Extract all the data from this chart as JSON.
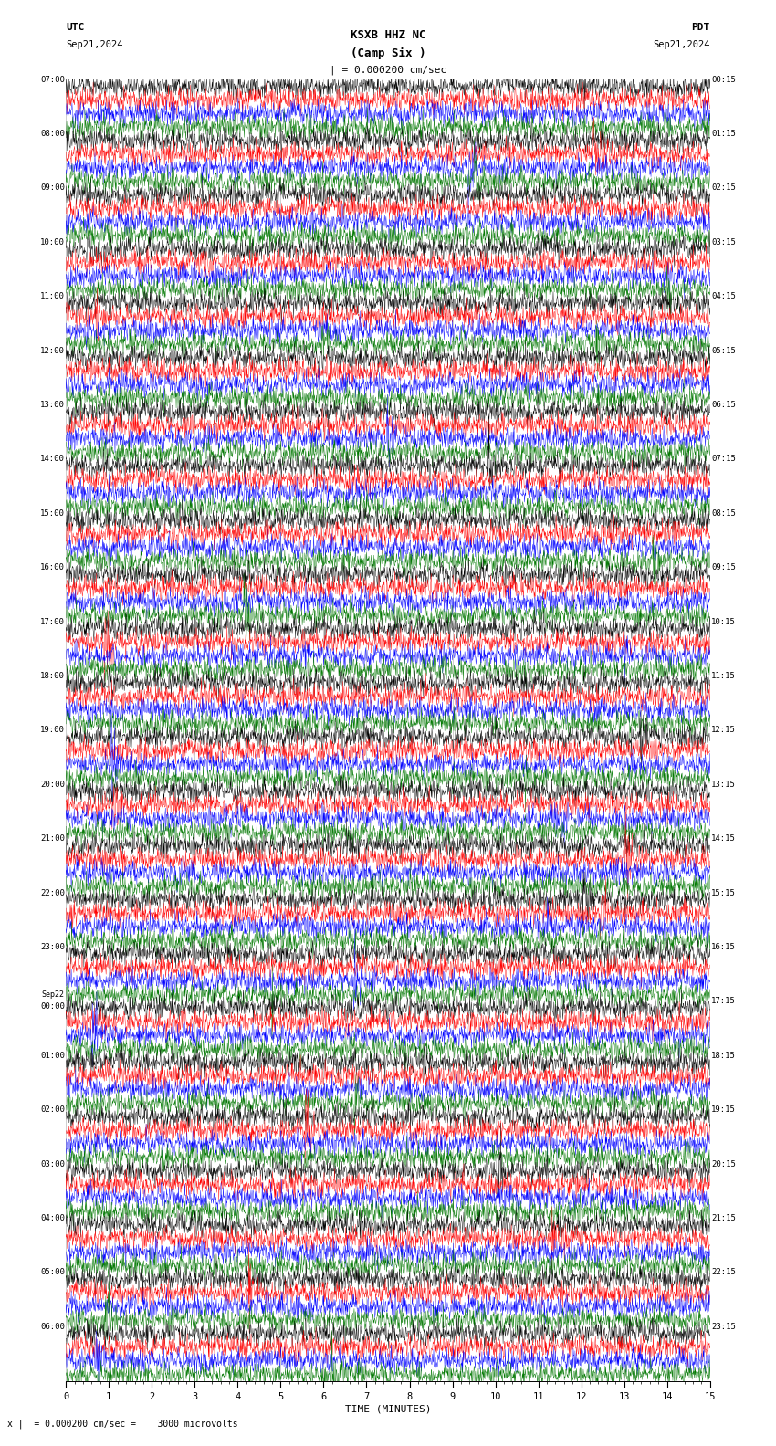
{
  "title_line1": "KSXB HHZ NC",
  "title_line2": "(Camp Six )",
  "scale_label": "| = 0.000200 cm/sec",
  "utc_label": "UTC",
  "pdt_label": "PDT",
  "date_left": "Sep21,2024",
  "date_right": "Sep21,2024",
  "bottom_label": "x |  = 0.000200 cm/sec =    3000 microvolts",
  "xlabel": "TIME (MINUTES)",
  "xlim": [
    0,
    15
  ],
  "background_color": "#ffffff",
  "trace_colors": [
    "#000000",
    "#ff0000",
    "#0000ff",
    "#007700"
  ],
  "grid_color": "#aaaaaa",
  "left_times": [
    "07:00",
    "08:00",
    "09:00",
    "10:00",
    "11:00",
    "12:00",
    "13:00",
    "14:00",
    "15:00",
    "16:00",
    "17:00",
    "18:00",
    "19:00",
    "20:00",
    "21:00",
    "22:00",
    "23:00",
    "Sep22\n00:00",
    "01:00",
    "02:00",
    "03:00",
    "04:00",
    "05:00",
    "06:00"
  ],
  "right_times": [
    "00:15",
    "01:15",
    "02:15",
    "03:15",
    "04:15",
    "05:15",
    "06:15",
    "07:15",
    "08:15",
    "09:15",
    "10:15",
    "11:15",
    "12:15",
    "13:15",
    "14:15",
    "15:15",
    "16:15",
    "17:15",
    "18:15",
    "19:15",
    "20:15",
    "21:15",
    "22:15",
    "23:15"
  ],
  "n_hours": 24,
  "traces_per_hour": 4,
  "fig_width": 8.5,
  "fig_height": 15.84,
  "dpi": 100
}
